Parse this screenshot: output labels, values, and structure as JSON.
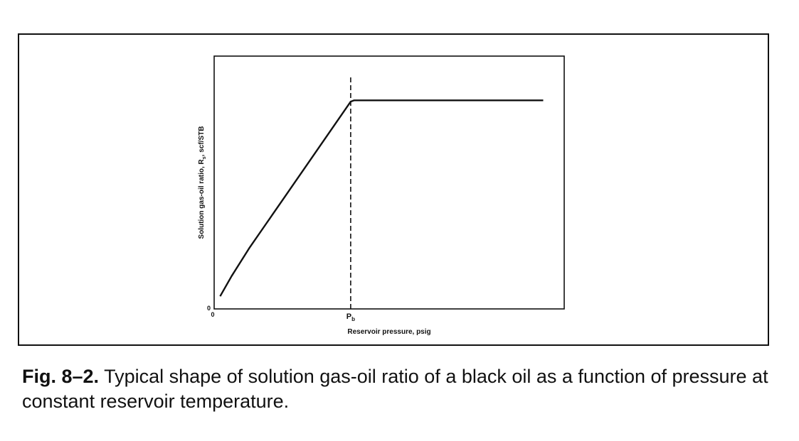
{
  "chart_data": {
    "type": "line",
    "title": "",
    "xlabel": "Reservoir pressure, psig",
    "ylabel_parts": {
      "main": "Solution gas-oil ratio, R",
      "subscript": "s",
      "units": ", scf/STB"
    },
    "x_tick_labels": {
      "origin": "0",
      "bubble_point": "P",
      "bubble_point_subscript": "b"
    },
    "y_tick_labels": {
      "origin": "0"
    },
    "xlim": [
      0,
      1
    ],
    "ylim": [
      0,
      1
    ],
    "grid": false,
    "legend": "none",
    "series": [
      {
        "points": [
          [
            0.017,
            0.05
          ],
          [
            0.05,
            0.13
          ],
          [
            0.1,
            0.24
          ],
          [
            0.15,
            0.34
          ],
          [
            0.2,
            0.44
          ],
          [
            0.25,
            0.54
          ],
          [
            0.3,
            0.64
          ],
          [
            0.35,
            0.74
          ],
          [
            0.39,
            0.82
          ],
          [
            0.4,
            0.825
          ],
          [
            0.6,
            0.825
          ],
          [
            0.94,
            0.825
          ]
        ]
      }
    ],
    "reference_lines": [
      {
        "orientation": "vertical",
        "x": 0.39,
        "style": "dashed",
        "y_from": 0,
        "y_to": 0.92
      }
    ],
    "colors": {
      "line": "#111111",
      "frame": "#111111"
    }
  },
  "caption": {
    "label": "Fig. 8–2.",
    "text": "Typical shape of solution gas-oil ratio of a black oil as a function of pressure at constant reservoir temperature."
  }
}
